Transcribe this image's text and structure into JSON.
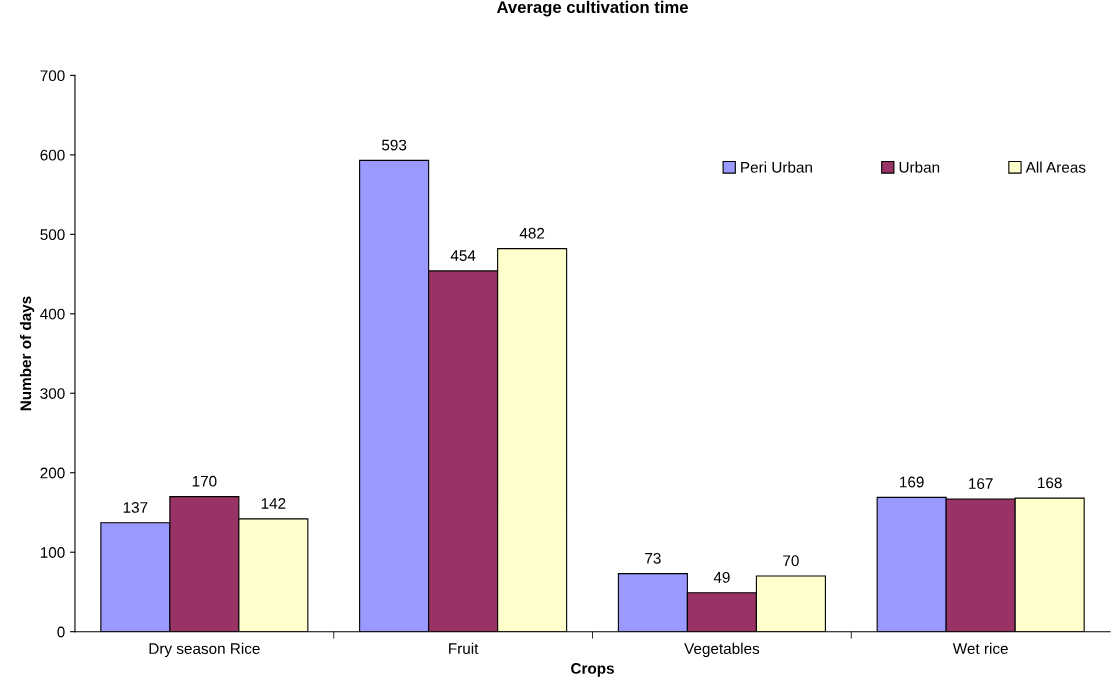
{
  "chart_data": {
    "type": "bar",
    "title": "Average cultivation time",
    "xlabel": "Crops",
    "ylabel": "Number of days",
    "categories": [
      "Dry season Rice",
      "Fruit",
      "Vegetables",
      "Wet rice"
    ],
    "series": [
      {
        "name": "Peri Urban",
        "color": "#9999ff",
        "values": [
          137,
          593,
          73,
          169
        ]
      },
      {
        "name": "Urban",
        "color": "#993366",
        "values": [
          170,
          454,
          49,
          167
        ]
      },
      {
        "name": "All Areas",
        "color": "#ffffcc",
        "values": [
          142,
          482,
          70,
          168
        ]
      }
    ],
    "ylim": [
      0,
      700
    ],
    "yticks": [
      0,
      100,
      200,
      300,
      400,
      500,
      600,
      700
    ],
    "grid": false,
    "legend": "top right",
    "data_labels": true
  }
}
